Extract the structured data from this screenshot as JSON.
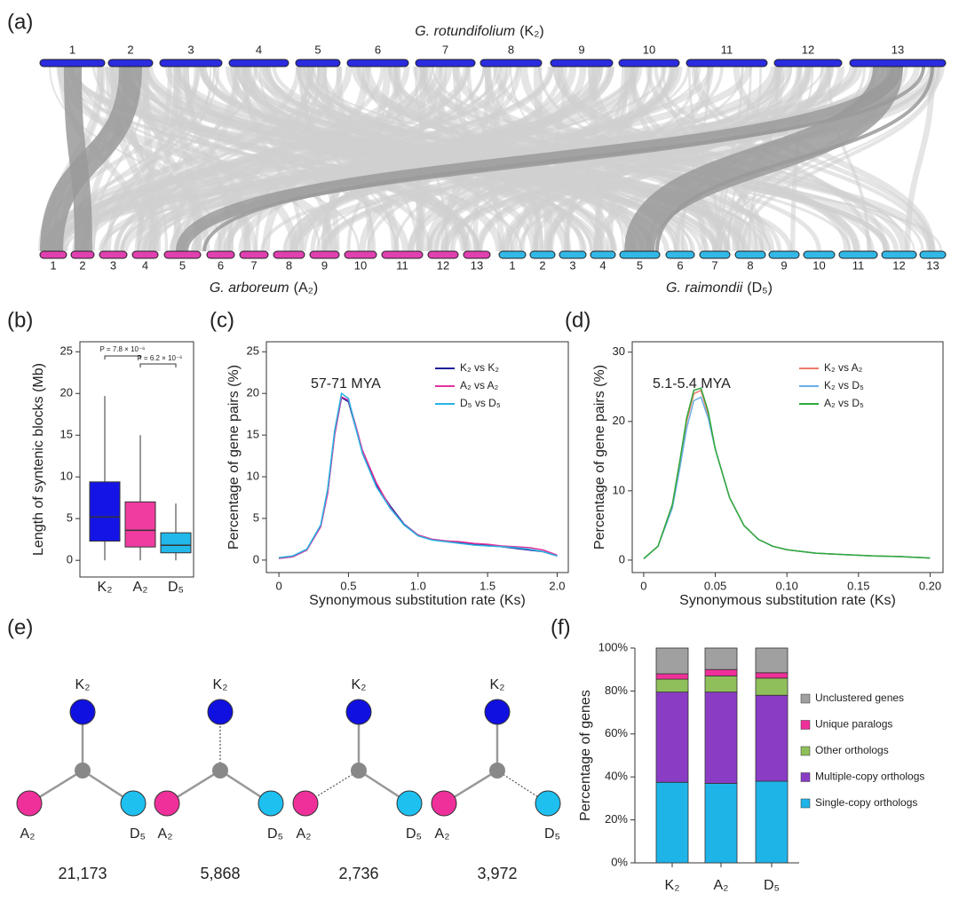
{
  "chart_data": [
    {
      "type": "synteny",
      "panel": "(a)",
      "top_species": "G. rotundifolium",
      "top_genome": "(K₂)",
      "left_species": "G. arboreum",
      "left_genome": "(A₂)",
      "right_species": "G. raimondii",
      "right_genome": "(D₅)",
      "top_labels": [
        "1",
        "2",
        "3",
        "4",
        "5",
        "6",
        "7",
        "8",
        "9",
        "10",
        "11",
        "12",
        "13"
      ],
      "left_labels": [
        "1",
        "2",
        "3",
        "4",
        "5",
        "6",
        "7",
        "8",
        "9",
        "10",
        "11",
        "12",
        "13"
      ],
      "right_labels": [
        "1",
        "2",
        "3",
        "4",
        "5",
        "6",
        "7",
        "8",
        "9",
        "10",
        "11",
        "12",
        "13"
      ],
      "colors": [
        "#2b2be0",
        "#e040b0",
        "#33b8e6"
      ]
    },
    {
      "type": "box",
      "panel": "(b)",
      "ylabel": "Length of syntenic blocks (Mb)",
      "categories": [
        "K₂",
        "A₂",
        "D₅"
      ],
      "boxes": [
        {
          "min": 0,
          "q1": 2.3,
          "median": 5.2,
          "q3": 9.4,
          "max": 19.7,
          "color": "#1414e6"
        },
        {
          "min": 0,
          "q1": 1.6,
          "median": 3.6,
          "q3": 7.0,
          "max": 15.0,
          "color": "#f03ca0"
        },
        {
          "min": 0,
          "q1": 0.9,
          "median": 1.8,
          "q3": 3.3,
          "max": 6.8,
          "color": "#22b8ea"
        }
      ],
      "annotations": [
        "P = 7.8 × 10⁻⁶",
        "P = 6.2 × 10⁻⁶"
      ],
      "ylim": [
        -2,
        26.2
      ],
      "yticks": [
        0,
        5,
        10,
        15,
        20,
        25
      ]
    },
    {
      "type": "line",
      "panel": "(c)",
      "ylabel": "Percentage of gene pairs (%)",
      "xlabel": "Synonymous substitution rate (Ks)",
      "annotation": "57-71 MYA",
      "x": [
        0,
        0.1,
        0.2,
        0.3,
        0.35,
        0.4,
        0.45,
        0.5,
        0.55,
        0.6,
        0.7,
        0.8,
        0.9,
        1.0,
        1.1,
        1.2,
        1.3,
        1.4,
        1.5,
        1.6,
        1.7,
        1.8,
        1.9,
        2.0
      ],
      "series": [
        {
          "name": "K₂ vs K₂",
          "color": "#1e1e9a",
          "values": [
            0.2,
            0.4,
            1.2,
            4,
            8,
            15,
            19.5,
            19,
            16,
            13,
            9,
            6.5,
            4.3,
            3.0,
            2.5,
            2.3,
            2.1,
            1.9,
            1.8,
            1.6,
            1.4,
            1.2,
            1.0,
            0.5
          ]
        },
        {
          "name": "A₂ vs A₂",
          "color": "#e0349c",
          "values": [
            0.2,
            0.4,
            1.2,
            4,
            8,
            15,
            19.6,
            19.2,
            16.3,
            13.2,
            9.3,
            6.3,
            4.2,
            3.0,
            2.5,
            2.3,
            2.2,
            2.0,
            1.9,
            1.7,
            1.6,
            1.5,
            1.2,
            0.6
          ]
        },
        {
          "name": "D₅ vs D₅",
          "color": "#28b4e4",
          "values": [
            0.3,
            0.5,
            1.3,
            4.2,
            8.5,
            15.5,
            20,
            19.4,
            16,
            12.8,
            8.8,
            6.2,
            4.2,
            2.9,
            2.4,
            2.2,
            2.0,
            1.8,
            1.7,
            1.6,
            1.5,
            1.3,
            1.0,
            0.5
          ]
        }
      ],
      "xlim": [
        -0.09,
        2.08
      ],
      "xticks": [
        0,
        0.5,
        {
          "value": 1,
          "label": "1.0"
        },
        1.5,
        {
          "value": 2,
          "label": "2.0"
        }
      ],
      "ylim": [
        -1.5,
        26.2
      ],
      "yticks": [
        0,
        5,
        10,
        15,
        20,
        25
      ]
    },
    {
      "type": "line",
      "panel": "(d)",
      "ylabel": "Percentage of gene pairs (%)",
      "xlabel": "Synonymous substitution rate (Ks)",
      "annotation": "5.1-5.4 MYA",
      "x": [
        0,
        0.01,
        0.02,
        0.025,
        0.03,
        0.035,
        0.04,
        0.045,
        0.05,
        0.06,
        0.07,
        0.08,
        0.09,
        0.1,
        0.12,
        0.14,
        0.16,
        0.18,
        0.2
      ],
      "series": [
        {
          "name": "K₂ vs A₂",
          "color": "#f07a6a",
          "values": [
            0.2,
            2,
            8,
            14,
            20,
            24,
            24.5,
            21,
            16,
            9,
            5,
            3,
            2,
            1.5,
            1,
            0.8,
            0.6,
            0.5,
            0.3
          ]
        },
        {
          "name": "K₂ vs D₅",
          "color": "#6aaee8",
          "values": [
            0.2,
            2,
            7.5,
            13,
            19,
            23,
            23.5,
            20.5,
            16,
            9,
            5,
            3,
            2,
            1.5,
            1,
            0.8,
            0.6,
            0.5,
            0.3
          ]
        },
        {
          "name": "A₂ vs D₅",
          "color": "#2eaa3a",
          "values": [
            0.2,
            2,
            8,
            14,
            20.5,
            24.5,
            24.8,
            21.5,
            16,
            9,
            5,
            3,
            2,
            1.5,
            1,
            0.8,
            0.6,
            0.5,
            0.3
          ]
        }
      ],
      "xlim": [
        -0.008,
        0.209
      ],
      "xticks": [
        0,
        0.05,
        {
          "value": 0.1,
          "label": "0.10"
        },
        0.15,
        {
          "value": 0.2,
          "label": "0.20"
        }
      ],
      "ylim": [
        -1.8,
        31.5
      ],
      "yticks": [
        0,
        10,
        20,
        30
      ]
    },
    {
      "type": "trees",
      "panel": "(e)",
      "nodes": [
        "K₂",
        "A₂",
        "D₅"
      ],
      "node_colors": [
        "#1010e0",
        "#f0309a",
        "#1ec0f0"
      ],
      "dotted": [
        [
          false,
          false,
          false
        ],
        [
          true,
          false,
          false
        ],
        [
          false,
          true,
          false
        ],
        [
          false,
          false,
          true
        ]
      ],
      "values": [
        21173,
        5868,
        2736,
        3972
      ],
      "value_labels": [
        "21,173",
        "5,868",
        "2,736",
        "3,972"
      ]
    },
    {
      "type": "stacked-bar",
      "panel": "(f)",
      "ylabel": "Percentage of genes",
      "categories": [
        "K₂",
        "A₂",
        "D₅"
      ],
      "series": [
        {
          "name": "Single-copy orthologs",
          "color": "#1fb4e8",
          "values": [
            37.5,
            37,
            38
          ]
        },
        {
          "name": "Multiple-copy orthologs",
          "color": "#8a3cc4",
          "values": [
            42,
            42.5,
            40
          ]
        },
        {
          "name": "Other orthologs",
          "color": "#8fbf5a",
          "values": [
            6,
            7.5,
            8
          ]
        },
        {
          "name": "Unique paralogs",
          "color": "#f0309a",
          "values": [
            2.5,
            3,
            2.5
          ]
        },
        {
          "name": "Unclustered genes",
          "color": "#a0a0a0",
          "values": [
            12,
            10,
            11.5
          ]
        }
      ],
      "ylim": [
        0,
        100
      ],
      "yticks": [
        {
          "value": 0,
          "label": "0%"
        },
        {
          "value": 20,
          "label": "20%"
        },
        {
          "value": 40,
          "label": "40%"
        },
        {
          "value": 60,
          "label": "60%"
        },
        {
          "value": 80,
          "label": "80%"
        },
        {
          "value": 100,
          "label": "100%"
        }
      ]
    }
  ]
}
